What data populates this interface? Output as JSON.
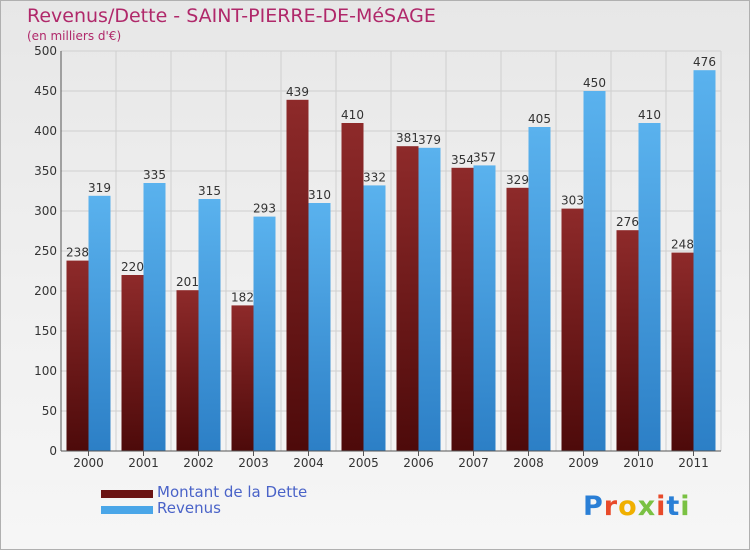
{
  "colors": {
    "dette": "#7a1d1d",
    "revenus": "#4aa6e8",
    "title": "#b0286a",
    "legend_text": "#4a63c8",
    "grid": "#cfcfcf",
    "axis": "#555555",
    "label": "#333333"
  },
  "legend": {
    "dette_label": "Montant de la Dette",
    "revenus_label": "Revenus"
  },
  "brand": {
    "letters": [
      "P",
      "r",
      "o",
      "x",
      "i",
      "t",
      "i"
    ],
    "letter_colors": [
      "#2a7fd6",
      "#e84a2a",
      "#f0b000",
      "#7ac143",
      "#e84a2a",
      "#2a7fd6",
      "#7ac143"
    ]
  },
  "chart_data": {
    "type": "bar",
    "title": "Revenus/Dette - SAINT-PIERRE-DE-MéSAGE",
    "subtitle": "(en milliers d'€)",
    "xlabel": "",
    "ylabel": "",
    "ylim": [
      0,
      500
    ],
    "yticks": [
      0,
      50,
      100,
      150,
      200,
      250,
      300,
      350,
      400,
      450,
      500
    ],
    "grid": true,
    "legend_position": "bottom-left",
    "categories": [
      "2000",
      "2001",
      "2002",
      "2003",
      "2004",
      "2005",
      "2006",
      "2007",
      "2008",
      "2009",
      "2010",
      "2011"
    ],
    "series": [
      {
        "name": "Montant de la Dette",
        "values": [
          238,
          220,
          201,
          182,
          439,
          410,
          381,
          354,
          329,
          303,
          276,
          248
        ]
      },
      {
        "name": "Revenus",
        "values": [
          319,
          335,
          315,
          293,
          310,
          332,
          379,
          357,
          405,
          450,
          410,
          476
        ]
      }
    ]
  }
}
